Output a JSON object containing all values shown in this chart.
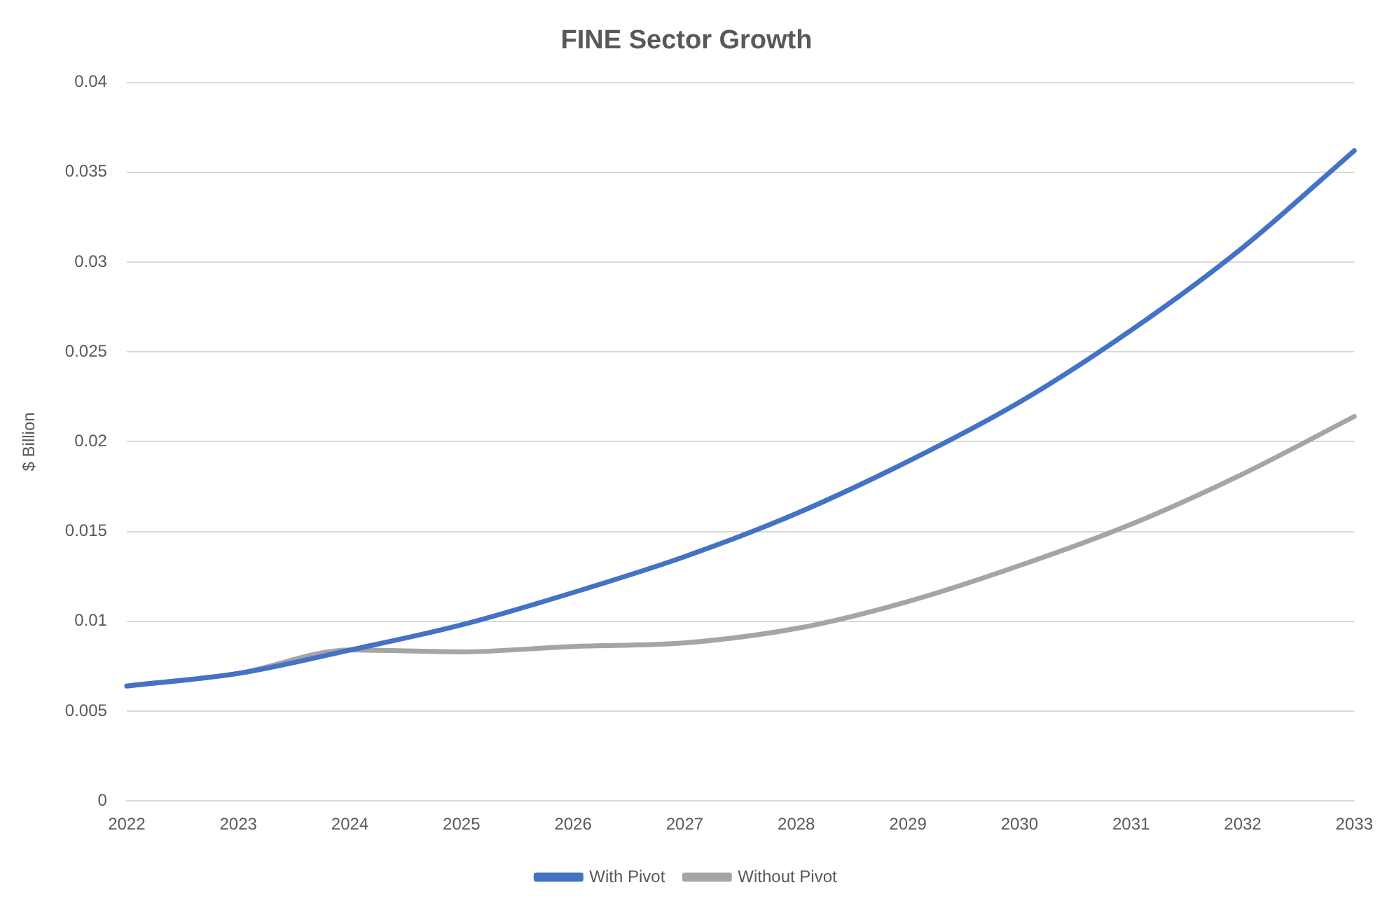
{
  "chart_data": {
    "type": "line",
    "title": "FINE Sector Growth",
    "ylabel": "$ Billion",
    "categories": [
      "2022",
      "2023",
      "2024",
      "2025",
      "2026",
      "2027",
      "2028",
      "2029",
      "2030",
      "2031",
      "2032",
      "2033"
    ],
    "series": [
      {
        "name": "With Pivot",
        "color": "#4472c4",
        "values": [
          0.0064,
          0.0071,
          0.0084,
          0.0098,
          0.0116,
          0.0136,
          0.016,
          0.0189,
          0.0222,
          0.0262,
          0.0308,
          0.0362
        ]
      },
      {
        "name": "Without Pivot",
        "color": "#a5a5a5",
        "values": [
          0.0064,
          0.0071,
          0.0084,
          0.0083,
          0.0086,
          0.0088,
          0.0096,
          0.0111,
          0.0131,
          0.0154,
          0.0182,
          0.0214
        ]
      }
    ],
    "ylim": [
      0,
      0.04
    ],
    "yticks": [
      0,
      0.005,
      0.01,
      0.015,
      0.02,
      0.025,
      0.03,
      0.035,
      0.04
    ],
    "grid": "y",
    "legend": "bottom",
    "marker": "none",
    "line_style": "solid"
  }
}
